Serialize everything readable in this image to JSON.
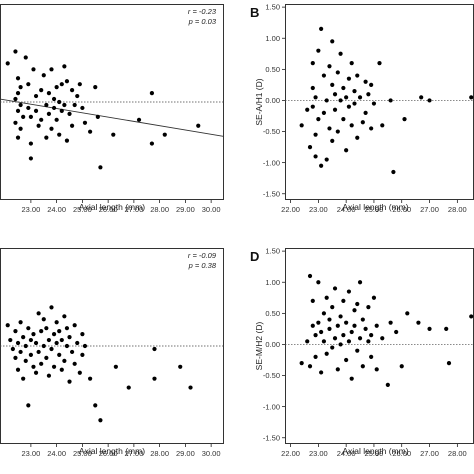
{
  "chart_data": [
    {
      "type": "scatter",
      "panel_label": "",
      "xlabel": "Axial length (mm)",
      "ylabel": "",
      "xlim": [
        21.8,
        30.5
      ],
      "ylim": [
        -1.65,
        1.65
      ],
      "xticks": [
        "23.00",
        "24.00",
        "25.00",
        "26.00",
        "27.00",
        "28.00",
        "29.00",
        "30.00"
      ],
      "yticks": [],
      "reference_line_y": 0,
      "regression_line": {
        "x0": 21.8,
        "y0": 0.05,
        "x1": 30.5,
        "y1": -0.58
      },
      "stats": {
        "r": "r = -0.23",
        "p": "p = 0.03"
      },
      "points": [
        [
          22.1,
          0.65
        ],
        [
          22.4,
          0.85
        ],
        [
          22.5,
          0.4
        ],
        [
          22.6,
          0.25
        ],
        [
          22.5,
          0.15
        ],
        [
          22.4,
          0.05
        ],
        [
          22.6,
          -0.05
        ],
        [
          22.5,
          -0.15
        ],
        [
          22.7,
          -0.25
        ],
        [
          22.4,
          -0.35
        ],
        [
          22.6,
          -0.45
        ],
        [
          22.5,
          -0.6
        ],
        [
          22.8,
          0.75
        ],
        [
          22.9,
          0.3
        ],
        [
          22.9,
          -0.1
        ],
        [
          23.0,
          -0.25
        ],
        [
          23.0,
          -0.7
        ],
        [
          23.0,
          -0.95
        ],
        [
          23.1,
          0.55
        ],
        [
          23.2,
          0.1
        ],
        [
          23.2,
          -0.15
        ],
        [
          23.3,
          -0.4
        ],
        [
          23.4,
          0.2
        ],
        [
          23.4,
          -0.3
        ],
        [
          23.5,
          0.45
        ],
        [
          23.6,
          -0.05
        ],
        [
          23.6,
          -0.6
        ],
        [
          23.7,
          0.15
        ],
        [
          23.7,
          -0.2
        ],
        [
          23.8,
          0.55
        ],
        [
          23.8,
          -0.45
        ],
        [
          23.9,
          0.05
        ],
        [
          23.9,
          -0.1
        ],
        [
          24.0,
          0.25
        ],
        [
          24.0,
          -0.3
        ],
        [
          24.1,
          0.0
        ],
        [
          24.1,
          -0.55
        ],
        [
          24.2,
          0.3
        ],
        [
          24.2,
          -0.15
        ],
        [
          24.3,
          0.6
        ],
        [
          24.3,
          -0.05
        ],
        [
          24.4,
          0.35
        ],
        [
          24.4,
          -0.65
        ],
        [
          24.5,
          -0.2
        ],
        [
          24.6,
          0.2
        ],
        [
          24.6,
          -0.4
        ],
        [
          24.7,
          -0.05
        ],
        [
          24.8,
          0.1
        ],
        [
          24.9,
          0.3
        ],
        [
          25.0,
          -0.1
        ],
        [
          25.1,
          -0.35
        ],
        [
          25.3,
          -0.5
        ],
        [
          25.5,
          0.25
        ],
        [
          25.6,
          -0.25
        ],
        [
          25.7,
          -1.1
        ],
        [
          26.2,
          -0.55
        ],
        [
          27.2,
          -0.3
        ],
        [
          27.7,
          0.15
        ],
        [
          27.7,
          -0.7
        ],
        [
          28.2,
          -0.55
        ],
        [
          29.5,
          -0.4
        ]
      ]
    },
    {
      "type": "scatter",
      "panel_label": "B",
      "xlabel": "Axial length (mm)",
      "ylabel": "SE-A/H1 (D)",
      "xlim": [
        21.8,
        28.6
      ],
      "ylim": [
        -1.6,
        1.55
      ],
      "xticks": [
        "22.00",
        "23.00",
        "24.00",
        "25.00",
        "26.00",
        "27.00",
        "28.00"
      ],
      "yticks": [
        "1.50",
        "1.00",
        "0.50",
        "0.00",
        "-0.50",
        "-1.00",
        "-1.50"
      ],
      "reference_line_y": 0,
      "points": [
        [
          22.4,
          -0.4
        ],
        [
          22.6,
          -0.15
        ],
        [
          22.7,
          -0.75
        ],
        [
          22.8,
          -0.1
        ],
        [
          22.8,
          0.2
        ],
        [
          22.8,
          0.6
        ],
        [
          22.9,
          -0.9
        ],
        [
          22.9,
          -0.55
        ],
        [
          22.9,
          0.05
        ],
        [
          23.0,
          0.8
        ],
        [
          23.0,
          -0.3
        ],
        [
          23.1,
          1.15
        ],
        [
          23.1,
          -1.05
        ],
        [
          23.2,
          0.4
        ],
        [
          23.2,
          -0.2
        ],
        [
          23.3,
          -0.95
        ],
        [
          23.3,
          0.0
        ],
        [
          23.4,
          0.55
        ],
        [
          23.4,
          -0.45
        ],
        [
          23.5,
          0.25
        ],
        [
          23.5,
          -0.65
        ],
        [
          23.5,
          0.95
        ],
        [
          23.6,
          0.1
        ],
        [
          23.6,
          -0.15
        ],
        [
          23.7,
          0.45
        ],
        [
          23.7,
          -0.5
        ],
        [
          23.8,
          0.0
        ],
        [
          23.8,
          0.75
        ],
        [
          23.9,
          -0.3
        ],
        [
          23.9,
          0.2
        ],
        [
          24.0,
          -0.8
        ],
        [
          24.0,
          0.05
        ],
        [
          24.1,
          0.35
        ],
        [
          24.1,
          -0.1
        ],
        [
          24.2,
          0.6
        ],
        [
          24.2,
          -0.4
        ],
        [
          24.3,
          -0.05
        ],
        [
          24.3,
          0.15
        ],
        [
          24.4,
          -0.6
        ],
        [
          24.4,
          0.4
        ],
        [
          24.5,
          0.05
        ],
        [
          24.6,
          -0.35
        ],
        [
          24.7,
          0.3
        ],
        [
          24.7,
          -0.2
        ],
        [
          24.8,
          0.1
        ],
        [
          24.9,
          -0.45
        ],
        [
          24.9,
          0.25
        ],
        [
          25.0,
          -0.05
        ],
        [
          25.2,
          0.6
        ],
        [
          25.3,
          -0.4
        ],
        [
          25.6,
          0.0
        ],
        [
          25.7,
          -1.15
        ],
        [
          26.1,
          -0.3
        ],
        [
          26.7,
          0.05
        ],
        [
          27.0,
          0.0
        ],
        [
          28.5,
          0.05
        ]
      ]
    },
    {
      "type": "scatter",
      "panel_label": "",
      "xlabel": "Axial length (mm)",
      "ylabel": "",
      "xlim": [
        21.8,
        30.5
      ],
      "ylim": [
        -1.65,
        1.65
      ],
      "xticks": [
        "23.00",
        "24.00",
        "25.00",
        "26.00",
        "27.00",
        "28.00",
        "29.00",
        "30.00"
      ],
      "yticks": [],
      "reference_line_y": 0,
      "stats": {
        "r": "r = -0.09",
        "p": "p = 0.38"
      },
      "points": [
        [
          22.1,
          0.35
        ],
        [
          22.2,
          0.1
        ],
        [
          22.3,
          -0.05
        ],
        [
          22.4,
          0.25
        ],
        [
          22.4,
          -0.2
        ],
        [
          22.5,
          0.05
        ],
        [
          22.5,
          -0.4
        ],
        [
          22.6,
          0.4
        ],
        [
          22.6,
          -0.1
        ],
        [
          22.7,
          0.15
        ],
        [
          22.7,
          -0.55
        ],
        [
          22.8,
          0.0
        ],
        [
          22.8,
          -0.25
        ],
        [
          22.9,
          0.3
        ],
        [
          22.9,
          -1.0
        ],
        [
          23.0,
          0.1
        ],
        [
          23.0,
          -0.15
        ],
        [
          23.1,
          0.2
        ],
        [
          23.1,
          -0.35
        ],
        [
          23.2,
          0.05
        ],
        [
          23.2,
          -0.45
        ],
        [
          23.3,
          0.55
        ],
        [
          23.3,
          -0.1
        ],
        [
          23.4,
          0.25
        ],
        [
          23.4,
          -0.3
        ],
        [
          23.5,
          0.45
        ],
        [
          23.5,
          0.0
        ],
        [
          23.6,
          -0.2
        ],
        [
          23.6,
          0.3
        ],
        [
          23.7,
          -0.5
        ],
        [
          23.7,
          0.1
        ],
        [
          23.8,
          0.65
        ],
        [
          23.8,
          -0.05
        ],
        [
          23.9,
          0.2
        ],
        [
          23.9,
          -0.35
        ],
        [
          24.0,
          0.05
        ],
        [
          24.0,
          0.4
        ],
        [
          24.1,
          -0.15
        ],
        [
          24.1,
          0.25
        ],
        [
          24.2,
          -0.4
        ],
        [
          24.2,
          0.1
        ],
        [
          24.3,
          0.5
        ],
        [
          24.3,
          -0.25
        ],
        [
          24.4,
          0.0
        ],
        [
          24.4,
          0.3
        ],
        [
          24.5,
          -0.6
        ],
        [
          24.5,
          0.15
        ],
        [
          24.6,
          -0.1
        ],
        [
          24.7,
          0.35
        ],
        [
          24.7,
          -0.3
        ],
        [
          24.8,
          0.05
        ],
        [
          24.9,
          -0.45
        ],
        [
          25.0,
          0.2
        ],
        [
          25.0,
          -0.15
        ],
        [
          25.1,
          0.0
        ],
        [
          25.3,
          -0.55
        ],
        [
          25.5,
          -1.0
        ],
        [
          25.7,
          -1.25
        ],
        [
          26.3,
          -0.35
        ],
        [
          26.8,
          -0.7
        ],
        [
          27.8,
          -0.05
        ],
        [
          27.8,
          -0.55
        ],
        [
          28.8,
          -0.35
        ],
        [
          29.2,
          -0.7
        ]
      ]
    },
    {
      "type": "scatter",
      "panel_label": "D",
      "xlabel": "Axial length (mm)",
      "ylabel": "SE-M/H2 (D)",
      "xlim": [
        21.8,
        28.6
      ],
      "ylim": [
        -1.6,
        1.55
      ],
      "xticks": [
        "22.00",
        "23.00",
        "24.00",
        "25.00",
        "26.00",
        "27.00",
        "28.00"
      ],
      "yticks": [
        "1.50",
        "1.00",
        "0.50",
        "0.00",
        "-0.50",
        "-1.00",
        "-1.50"
      ],
      "reference_line_y": 0,
      "points": [
        [
          22.4,
          -0.3
        ],
        [
          22.6,
          0.05
        ],
        [
          22.7,
          -0.35
        ],
        [
          22.7,
          1.1
        ],
        [
          22.8,
          0.3
        ],
        [
          22.8,
          0.7
        ],
        [
          22.9,
          0.15
        ],
        [
          22.9,
          -0.2
        ],
        [
          23.0,
          0.35
        ],
        [
          23.0,
          1.0
        ],
        [
          23.1,
          0.2
        ],
        [
          23.1,
          -0.45
        ],
        [
          23.2,
          0.5
        ],
        [
          23.2,
          0.05
        ],
        [
          23.3,
          0.75
        ],
        [
          23.3,
          -0.15
        ],
        [
          23.4,
          0.4
        ],
        [
          23.4,
          0.25
        ],
        [
          23.5,
          -0.05
        ],
        [
          23.5,
          0.6
        ],
        [
          23.6,
          0.1
        ],
        [
          23.6,
          0.9
        ],
        [
          23.7,
          0.3
        ],
        [
          23.7,
          -0.4
        ],
        [
          23.8,
          0.45
        ],
        [
          23.8,
          0.0
        ],
        [
          23.9,
          0.7
        ],
        [
          23.9,
          0.15
        ],
        [
          24.0,
          -0.25
        ],
        [
          24.0,
          0.35
        ],
        [
          24.1,
          0.85
        ],
        [
          24.1,
          0.05
        ],
        [
          24.2,
          0.2
        ],
        [
          24.2,
          -0.55
        ],
        [
          24.3,
          0.55
        ],
        [
          24.3,
          0.3
        ],
        [
          24.4,
          -0.1
        ],
        [
          24.4,
          0.65
        ],
        [
          24.5,
          0.1
        ],
        [
          24.5,
          1.0
        ],
        [
          24.6,
          0.4
        ],
        [
          24.6,
          -0.35
        ],
        [
          24.7,
          0.25
        ],
        [
          24.8,
          0.05
        ],
        [
          24.8,
          0.6
        ],
        [
          24.9,
          -0.2
        ],
        [
          24.9,
          0.15
        ],
        [
          25.0,
          0.75
        ],
        [
          25.1,
          -0.4
        ],
        [
          25.1,
          0.3
        ],
        [
          25.3,
          0.1
        ],
        [
          25.5,
          -0.65
        ],
        [
          25.6,
          0.35
        ],
        [
          25.8,
          0.2
        ],
        [
          26.0,
          -0.35
        ],
        [
          26.2,
          0.5
        ],
        [
          26.6,
          0.35
        ],
        [
          27.0,
          0.25
        ],
        [
          27.6,
          0.25
        ],
        [
          27.7,
          -0.3
        ],
        [
          28.5,
          0.45
        ]
      ]
    }
  ]
}
